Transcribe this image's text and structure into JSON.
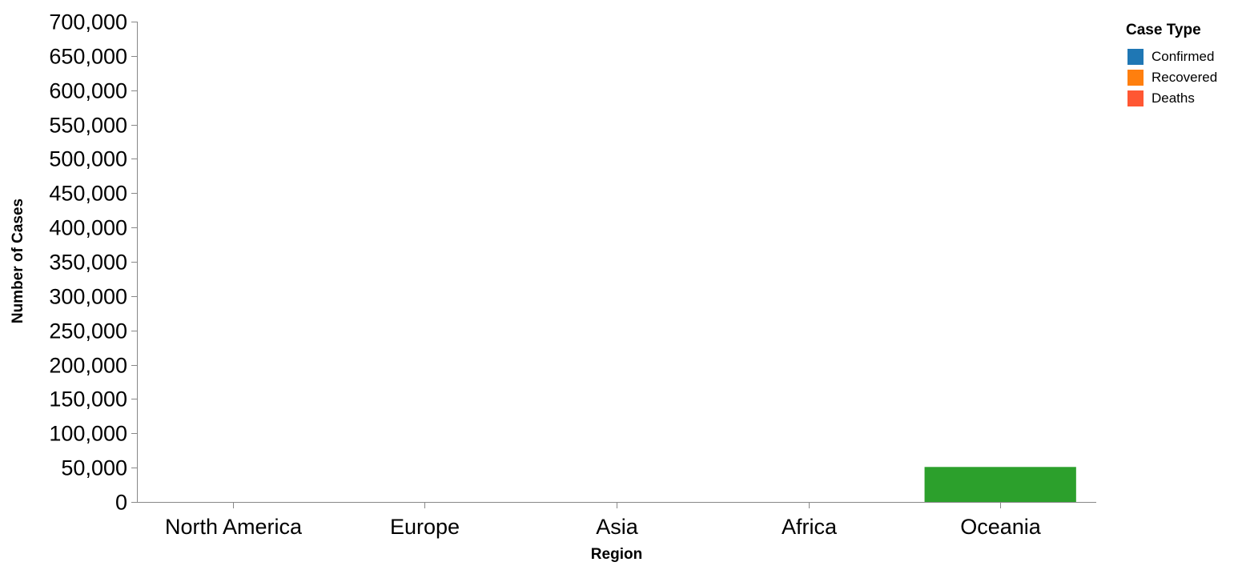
{
  "chart_data": {
    "type": "bar",
    "xlabel": "Region",
    "ylabel": "Number of Cases",
    "categories": [
      "North America",
      "Europe",
      "Asia",
      "Africa",
      "Oceania"
    ],
    "series": [
      {
        "name": "Confirmed",
        "color": "#1f77b4",
        "values": [
          0,
          0,
          0,
          0,
          0
        ]
      },
      {
        "name": "Recovered",
        "color": "#ff7f0e",
        "values": [
          0,
          0,
          0,
          0,
          0
        ]
      },
      {
        "name": "Deaths",
        "color": "#ff5733",
        "values": [
          0,
          0,
          0,
          0,
          0
        ]
      },
      {
        "color": "#2ca02c",
        "values": [
          0,
          0,
          0,
          0,
          51000
        ]
      }
    ],
    "ylim": [
      0,
      700000
    ],
    "yticks": [
      0,
      50000,
      100000,
      150000,
      200000,
      250000,
      300000,
      350000,
      400000,
      450000,
      500000,
      550000,
      600000,
      650000,
      700000
    ],
    "ytick_labels": [
      "0",
      "50,000",
      "100,000",
      "150,000",
      "200,000",
      "250,000",
      "300,000",
      "350,000",
      "400,000",
      "450,000",
      "500,000",
      "550,000",
      "600,000",
      "650,000",
      "700,000"
    ],
    "grid": false,
    "legend": {
      "title": "Case Type",
      "position": "top-right",
      "entries": [
        "Confirmed",
        "Recovered",
        "Deaths"
      ],
      "colors": [
        "#1f77b4",
        "#ff7f0e",
        "#ff5733"
      ]
    }
  }
}
